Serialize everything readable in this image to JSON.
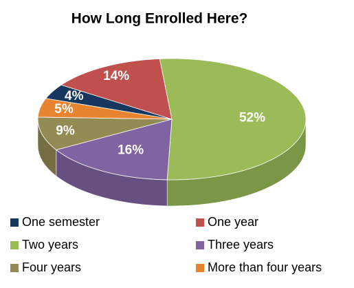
{
  "chart_data": {
    "type": "pie",
    "title": "How Long Enrolled Here?",
    "categories": [
      "One semester",
      "One year",
      "Two years",
      "Three years",
      "Four years",
      "More than four years"
    ],
    "values": [
      4,
      14,
      52,
      16,
      9,
      5
    ],
    "value_labels": [
      "4%",
      "14%",
      "52%",
      "16%",
      "9%",
      "5%"
    ],
    "colors": [
      "#17375e",
      "#c0504d",
      "#9bbb59",
      "#8064a2",
      "#948a54",
      "#e8842f"
    ],
    "legend": "bottom"
  }
}
